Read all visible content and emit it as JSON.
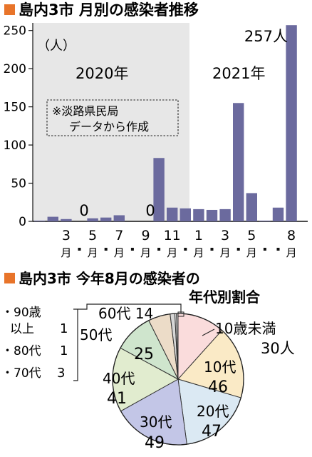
{
  "colors": {
    "bar": "#6b6a9e",
    "square": "#e8742a",
    "shade": "#e7e7e7"
  },
  "chart_data": [
    {
      "type": "bar",
      "title": "島内3市 月別の感染者推移",
      "unit_label": "（人）",
      "note_lines": [
        "※淡路県民局",
        "データから作成"
      ],
      "year_labels": [
        "2020年",
        "2021年"
      ],
      "x": [
        "2020-01",
        "2020-02",
        "2020-03",
        "2020-04",
        "2020-05",
        "2020-06",
        "2020-07",
        "2020-08",
        "2020-09",
        "2020-10",
        "2020-11",
        "2020-12",
        "2021-01",
        "2021-02",
        "2021-03",
        "2021-04",
        "2021-05",
        "2021-06",
        "2021-07",
        "2021-08"
      ],
      "values": [
        1,
        6,
        3,
        0,
        4,
        5,
        8,
        0,
        0,
        83,
        18,
        17,
        16,
        15,
        16,
        155,
        37,
        1,
        18,
        257
      ],
      "ylim": [
        0,
        260
      ],
      "yticks": [
        0,
        50,
        100,
        150,
        200,
        250
      ],
      "month_labels": [
        {
          "num": "3",
          "suffix": "月"
        },
        {
          "num": "5",
          "suffix": "月"
        },
        {
          "num": "7",
          "suffix": "月"
        },
        {
          "num": "9",
          "suffix": "月"
        },
        {
          "num": "11",
          "suffix": "月"
        },
        {
          "num": "1",
          "suffix": "月"
        },
        {
          "num": "3",
          "suffix": "月"
        },
        {
          "num": "5",
          "suffix": "月"
        },
        {
          "num": "8",
          "suffix": "月"
        }
      ],
      "annotations": [
        {
          "text": "0"
        },
        {
          "text": "0"
        },
        {
          "text": "257人"
        }
      ]
    },
    {
      "type": "pie",
      "title_lines": [
        "島内3市 今年8月の感染者の",
        "年代別割合"
      ],
      "slices": [
        {
          "label": "10歳未満",
          "value": 30,
          "value_text": "30人",
          "color": "#fadcdc"
        },
        {
          "label": "10代",
          "value": 46,
          "value_text": "46",
          "color": "#faeac6"
        },
        {
          "label": "20代",
          "value": 47,
          "value_text": "47",
          "color": "#dbe9f3"
        },
        {
          "label": "30代",
          "value": 49,
          "value_text": "49",
          "color": "#c3c6e7"
        },
        {
          "label": "40代",
          "value": 41,
          "value_text": "41",
          "color": "#e1eccf"
        },
        {
          "label": "50代",
          "value": 25,
          "value_text": "25",
          "color": "#cfe5cd"
        },
        {
          "label": "60代",
          "value": 14,
          "value_text": "14",
          "color": "#ecdcc8"
        },
        {
          "label": "70代",
          "value": 3,
          "value_text": "3",
          "color": "#d6d6d6"
        },
        {
          "label": "80代",
          "value": 1,
          "value_text": "1",
          "color": "#eeeeee"
        },
        {
          "label": "90歳以上",
          "value": 1,
          "value_text": "1",
          "color": "#cfcfcf"
        }
      ],
      "small_legend": [
        {
          "line1": "・90歳",
          "line2": "以上",
          "value": "1"
        },
        {
          "line1": "・80代",
          "value": "1"
        },
        {
          "line1": "・70代",
          "value": "3"
        }
      ]
    }
  ]
}
